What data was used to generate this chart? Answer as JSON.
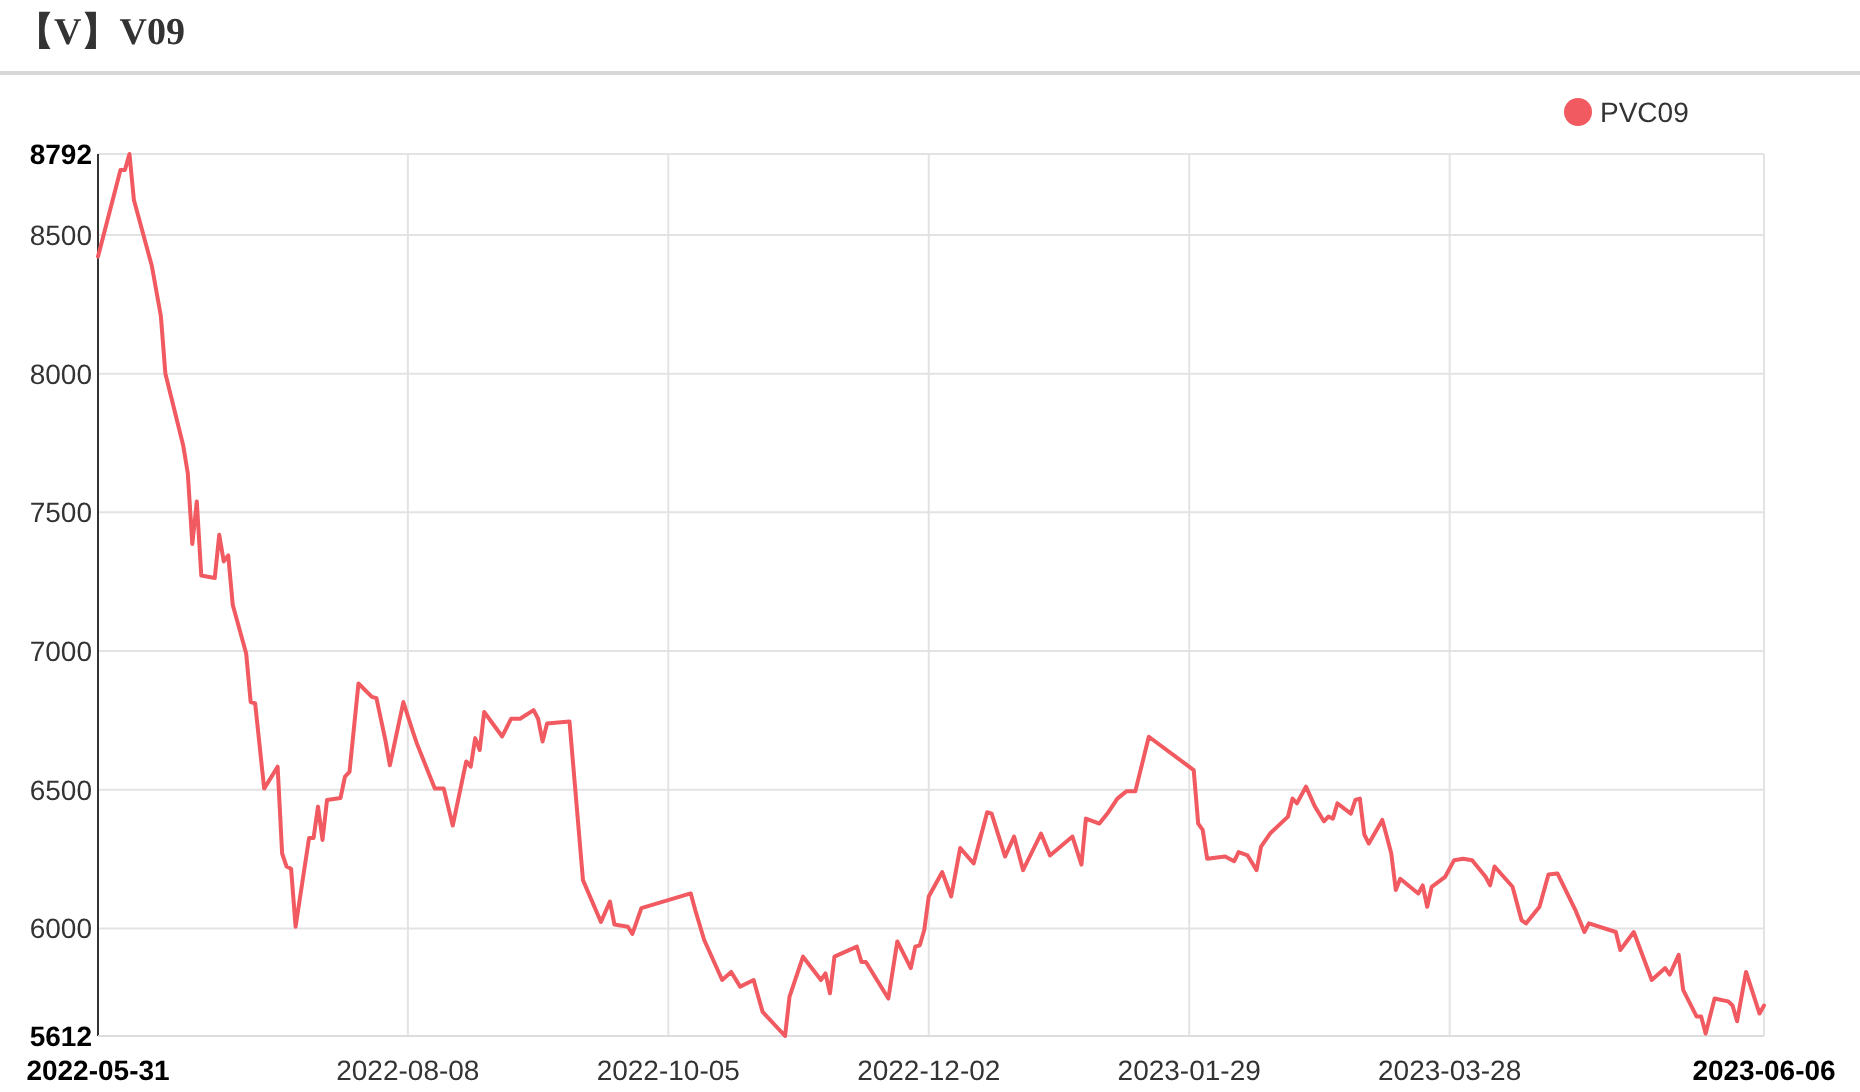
{
  "chart_data": {
    "type": "line",
    "title": "【V】V09",
    "xlim": [
      "2022-05-31",
      "2023-06-06"
    ],
    "xticks": [
      "2022-05-31",
      "2022-08-08",
      "2022-10-05",
      "2022-12-02",
      "2023-01-29",
      "2023-03-28",
      "2023-06-06"
    ],
    "ylim": [
      5612,
      8792
    ],
    "yticks": [
      5612,
      6000,
      6500,
      7000,
      7500,
      8000,
      8500,
      8792
    ],
    "grid": true,
    "legend": "top right",
    "marker": "none",
    "line_style": "solid",
    "series": [
      {
        "name": "PVC09",
        "color": "#f05a60",
        "x": [
          "2022-05-31",
          "2022-06-05",
          "2022-06-06",
          "2022-06-07",
          "2022-06-08",
          "2022-06-12",
          "2022-06-14",
          "2022-06-15",
          "2022-06-19",
          "2022-06-20",
          "2022-06-21",
          "2022-06-22",
          "2022-06-23",
          "2022-06-26",
          "2022-06-27",
          "2022-06-28",
          "2022-06-29",
          "2022-06-30",
          "2022-07-03",
          "2022-07-04",
          "2022-07-05",
          "2022-07-07",
          "2022-07-10",
          "2022-07-11",
          "2022-07-12",
          "2022-07-13",
          "2022-07-14",
          "2022-07-17",
          "2022-07-18",
          "2022-07-19",
          "2022-07-20",
          "2022-07-21",
          "2022-07-24",
          "2022-07-25",
          "2022-07-26",
          "2022-07-28",
          "2022-07-31",
          "2022-08-01",
          "2022-08-03",
          "2022-08-04",
          "2022-08-07",
          "2022-08-09",
          "2022-08-10",
          "2022-08-14",
          "2022-08-16",
          "2022-08-18",
          "2022-08-21",
          "2022-08-22",
          "2022-08-23",
          "2022-08-24",
          "2022-08-25",
          "2022-08-29",
          "2022-08-31",
          "2022-09-02",
          "2022-09-05",
          "2022-09-06",
          "2022-09-07",
          "2022-09-08",
          "2022-09-13",
          "2022-09-16",
          "2022-09-20",
          "2022-09-22",
          "2022-09-23",
          "2022-09-26",
          "2022-09-27",
          "2022-09-29",
          "2022-10-10",
          "2022-10-11",
          "2022-10-13",
          "2022-10-17",
          "2022-10-19",
          "2022-10-21",
          "2022-10-24",
          "2022-10-26",
          "2022-10-31",
          "2022-11-01",
          "2022-11-04",
          "2022-11-08",
          "2022-11-09",
          "2022-11-10",
          "2022-11-11",
          "2022-11-16",
          "2022-11-17",
          "2022-11-18",
          "2022-11-23",
          "2022-11-25",
          "2022-11-28",
          "2022-11-29",
          "2022-11-30",
          "2022-12-01",
          "2022-12-02",
          "2022-12-05",
          "2022-12-07",
          "2022-12-09",
          "2022-12-12",
          "2022-12-15",
          "2022-12-16",
          "2022-12-19",
          "2022-12-21",
          "2022-12-23",
          "2022-12-27",
          "2022-12-29",
          "2023-01-03",
          "2023-01-05",
          "2023-01-06",
          "2023-01-09",
          "2023-01-11",
          "2023-01-13",
          "2023-01-15",
          "2023-01-17",
          "2023-01-20",
          "2023-01-30",
          "2023-01-31",
          "2023-02-01",
          "2023-02-02",
          "2023-02-06",
          "2023-02-08",
          "2023-02-09",
          "2023-02-11",
          "2023-02-13",
          "2023-02-14",
          "2023-02-16",
          "2023-02-20",
          "2023-02-21",
          "2023-02-22",
          "2023-02-24",
          "2023-02-26",
          "2023-02-28",
          "2023-03-01",
          "2023-03-02",
          "2023-03-03",
          "2023-03-06",
          "2023-03-07",
          "2023-03-08",
          "2023-03-09",
          "2023-03-10",
          "2023-03-13",
          "2023-03-14",
          "2023-03-15",
          "2023-03-16",
          "2023-03-17",
          "2023-03-21",
          "2023-03-22",
          "2023-03-23",
          "2023-03-24",
          "2023-03-27",
          "2023-03-29",
          "2023-03-31",
          "2023-04-02",
          "2023-04-05",
          "2023-04-06",
          "2023-04-07",
          "2023-04-11",
          "2023-04-13",
          "2023-04-14",
          "2023-04-17",
          "2023-04-19",
          "2023-04-21",
          "2023-04-25",
          "2023-04-27",
          "2023-04-28",
          "2023-05-04",
          "2023-05-05",
          "2023-05-08",
          "2023-05-12",
          "2023-05-15",
          "2023-05-16",
          "2023-05-18",
          "2023-05-19",
          "2023-05-22",
          "2023-05-23",
          "2023-05-24",
          "2023-05-26",
          "2023-05-29",
          "2023-05-30",
          "2023-05-31",
          "2023-06-02",
          "2023-06-05",
          "2023-06-06"
        ],
        "values": [
          8422,
          8734,
          8734,
          8792,
          8626,
          8388,
          8208,
          8001,
          7739,
          7640,
          7386,
          7539,
          7272,
          7263,
          7419,
          7323,
          7345,
          7167,
          6991,
          6816,
          6811,
          6504,
          6583,
          6270,
          6223,
          6215,
          6006,
          6326,
          6326,
          6439,
          6319,
          6463,
          6470,
          6547,
          6564,
          6883,
          6835,
          6830,
          6679,
          6588,
          6816,
          6715,
          6667,
          6504,
          6504,
          6371,
          6602,
          6583,
          6686,
          6643,
          6780,
          6692,
          6756,
          6756,
          6787,
          6756,
          6674,
          6739,
          6746,
          6174,
          6023,
          6097,
          6014,
          6006,
          5980,
          6073,
          6126,
          6066,
          5958,
          5814,
          5843,
          5790,
          5814,
          5699,
          5612,
          5754,
          5898,
          5814,
          5838,
          5766,
          5898,
          5934,
          5879,
          5879,
          5747,
          5953,
          5857,
          5934,
          5939,
          5994,
          6115,
          6203,
          6115,
          6290,
          6234,
          6419,
          6414,
          6259,
          6331,
          6210,
          6342,
          6263,
          6331,
          6230,
          6396,
          6378,
          6419,
          6468,
          6494,
          6494,
          6691,
          6571,
          6378,
          6355,
          6251,
          6259,
          6242,
          6275,
          6263,
          6210,
          6295,
          6342,
          6403,
          6468,
          6451,
          6511,
          6439,
          6386,
          6403,
          6396,
          6451,
          6414,
          6463,
          6468,
          6338,
          6306,
          6391,
          6331,
          6270,
          6138,
          6179,
          6126,
          6155,
          6078,
          6150,
          6186,
          6246,
          6251,
          6246,
          6186,
          6155,
          6223,
          6150,
          6030,
          6018,
          6078,
          6194,
          6198,
          6066,
          5987,
          6018,
          5987,
          5922,
          5987,
          5814,
          5857,
          5833,
          5905,
          5778,
          5682,
          5682,
          5621,
          5747,
          5737,
          5722,
          5665,
          5843,
          5693,
          5722
        ]
      }
    ]
  }
}
